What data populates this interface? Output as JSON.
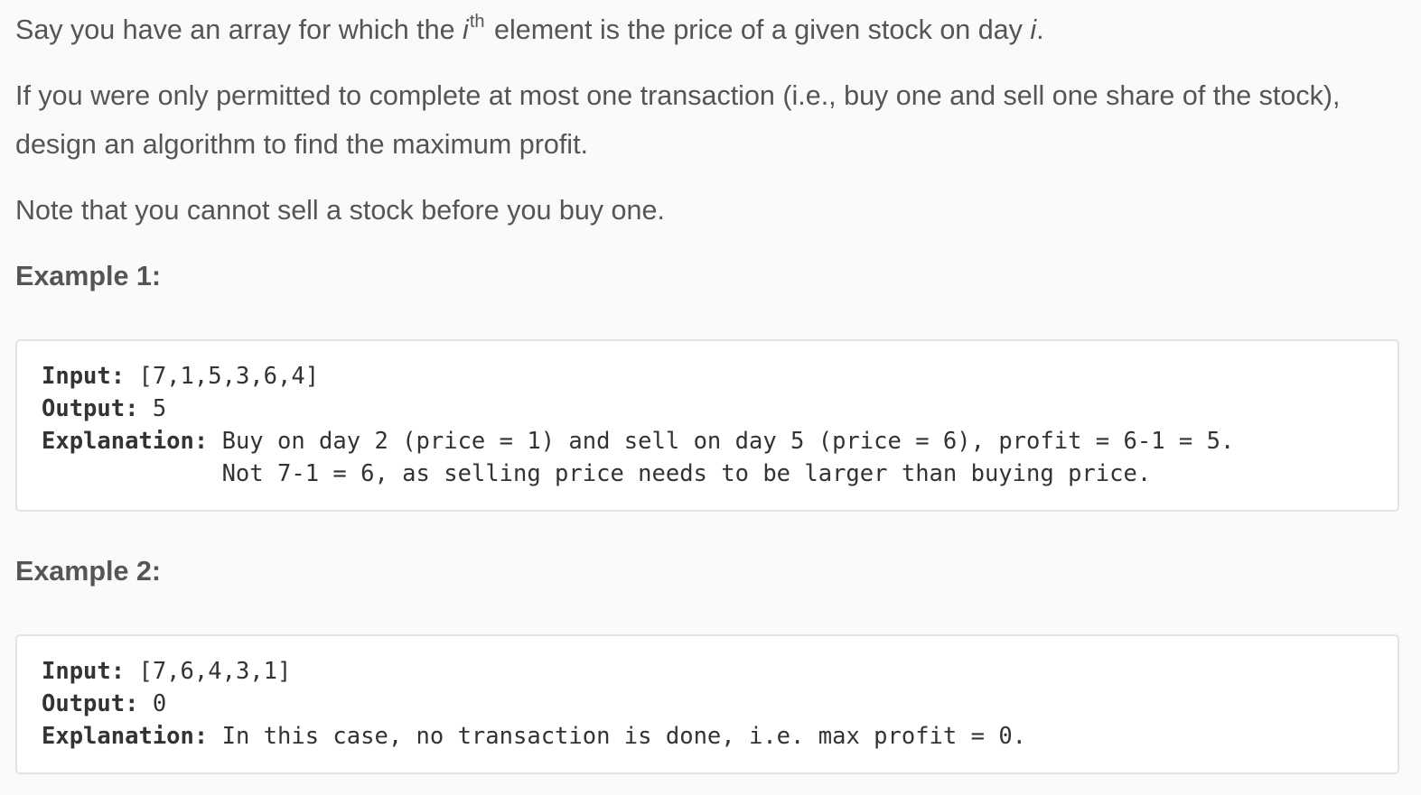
{
  "intro": {
    "p1_before": "Say you have an array for which the ",
    "p1_i": "i",
    "p1_sup": "th",
    "p1_after": " element is the price of a given stock on day ",
    "p1_day_i": "i",
    "p1_end": ".",
    "p2": "If you were only permitted to complete at most one transaction (i.e., buy one and sell one share of the stock), design an algorithm to find the maximum profit.",
    "p3": "Note that you cannot sell a stock before you buy one."
  },
  "examples": [
    {
      "heading": "Example 1:",
      "input_label": "Input:",
      "input_value": " [7,1,5,3,6,4]",
      "output_label": "Output:",
      "output_value": " 5",
      "explanation_label": "Explanation:",
      "explanation_line1": " Buy on day 2 (price = 1) and sell on day 5 (price = 6), profit = 6-1 = 5.",
      "explanation_line2": "             Not 7-1 = 6, as selling price needs to be larger than buying price."
    },
    {
      "heading": "Example 2:",
      "input_label": "Input:",
      "input_value": " [7,6,4,3,1]",
      "output_label": "Output:",
      "output_value": " 0",
      "explanation_label": "Explanation:",
      "explanation_line1": " In this case, no transaction is done, i.e. max profit = 0."
    }
  ]
}
